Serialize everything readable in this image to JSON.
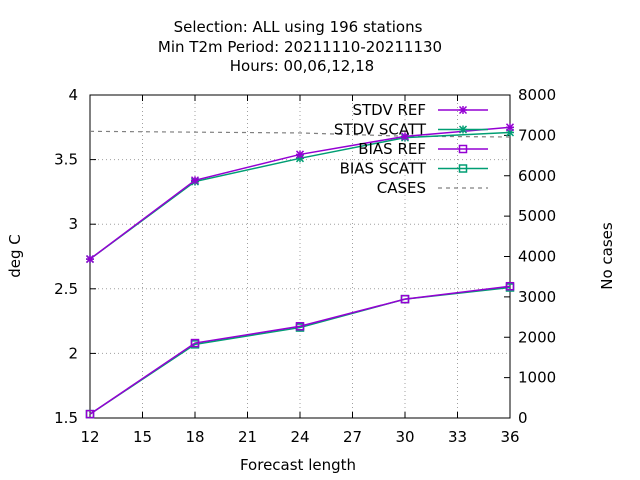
{
  "chart_data": {
    "type": "line",
    "title_lines": [
      "Selection: ALL using   196 stations",
      "Min T2m   Period: 20211110-20211130",
      "Hours:  00,06,12,18"
    ],
    "xlabel": "Forecast length",
    "ylabel": "deg C",
    "y2label": "No cases",
    "xlim": [
      12,
      36
    ],
    "ylim": [
      1.5,
      4
    ],
    "y2lim": [
      0,
      8000
    ],
    "xticks": [
      12,
      15,
      18,
      21,
      24,
      27,
      30,
      33,
      36
    ],
    "yticks": [
      1.5,
      2,
      2.5,
      3,
      3.5,
      4
    ],
    "yticklabels": [
      "1.5",
      "2",
      "2.5",
      "3",
      "3.5",
      "4"
    ],
    "y2ticks": [
      0,
      1000,
      2000,
      3000,
      4000,
      5000,
      6000,
      7000,
      8000
    ],
    "grid": true,
    "legend_position": "top-right",
    "x": [
      12,
      18,
      24,
      30,
      36
    ],
    "series": [
      {
        "name": "STDV REF",
        "axis": "y",
        "color": "#9400d3",
        "marker": "x",
        "dash": "",
        "values": [
          2.73,
          3.34,
          3.54,
          3.68,
          3.75
        ]
      },
      {
        "name": "STDV SCATT",
        "axis": "y",
        "color": "#009e73",
        "marker": "x",
        "dash": "",
        "values": [
          2.73,
          3.33,
          3.51,
          3.67,
          3.71
        ]
      },
      {
        "name": "BIAS REF",
        "axis": "y",
        "color": "#9400d3",
        "marker": "square",
        "dash": "",
        "values": [
          1.53,
          2.08,
          2.21,
          2.42,
          2.52
        ]
      },
      {
        "name": "BIAS SCATT",
        "axis": "y",
        "color": "#009e73",
        "marker": "square",
        "dash": "",
        "values": [
          1.53,
          2.07,
          2.2,
          2.42,
          2.51
        ]
      },
      {
        "name": "CASES",
        "axis": "y2",
        "color": "#808080",
        "marker": "none",
        "dash": "4,4",
        "values": [
          7100,
          7080,
          7060,
          6980,
          6960
        ]
      }
    ]
  }
}
